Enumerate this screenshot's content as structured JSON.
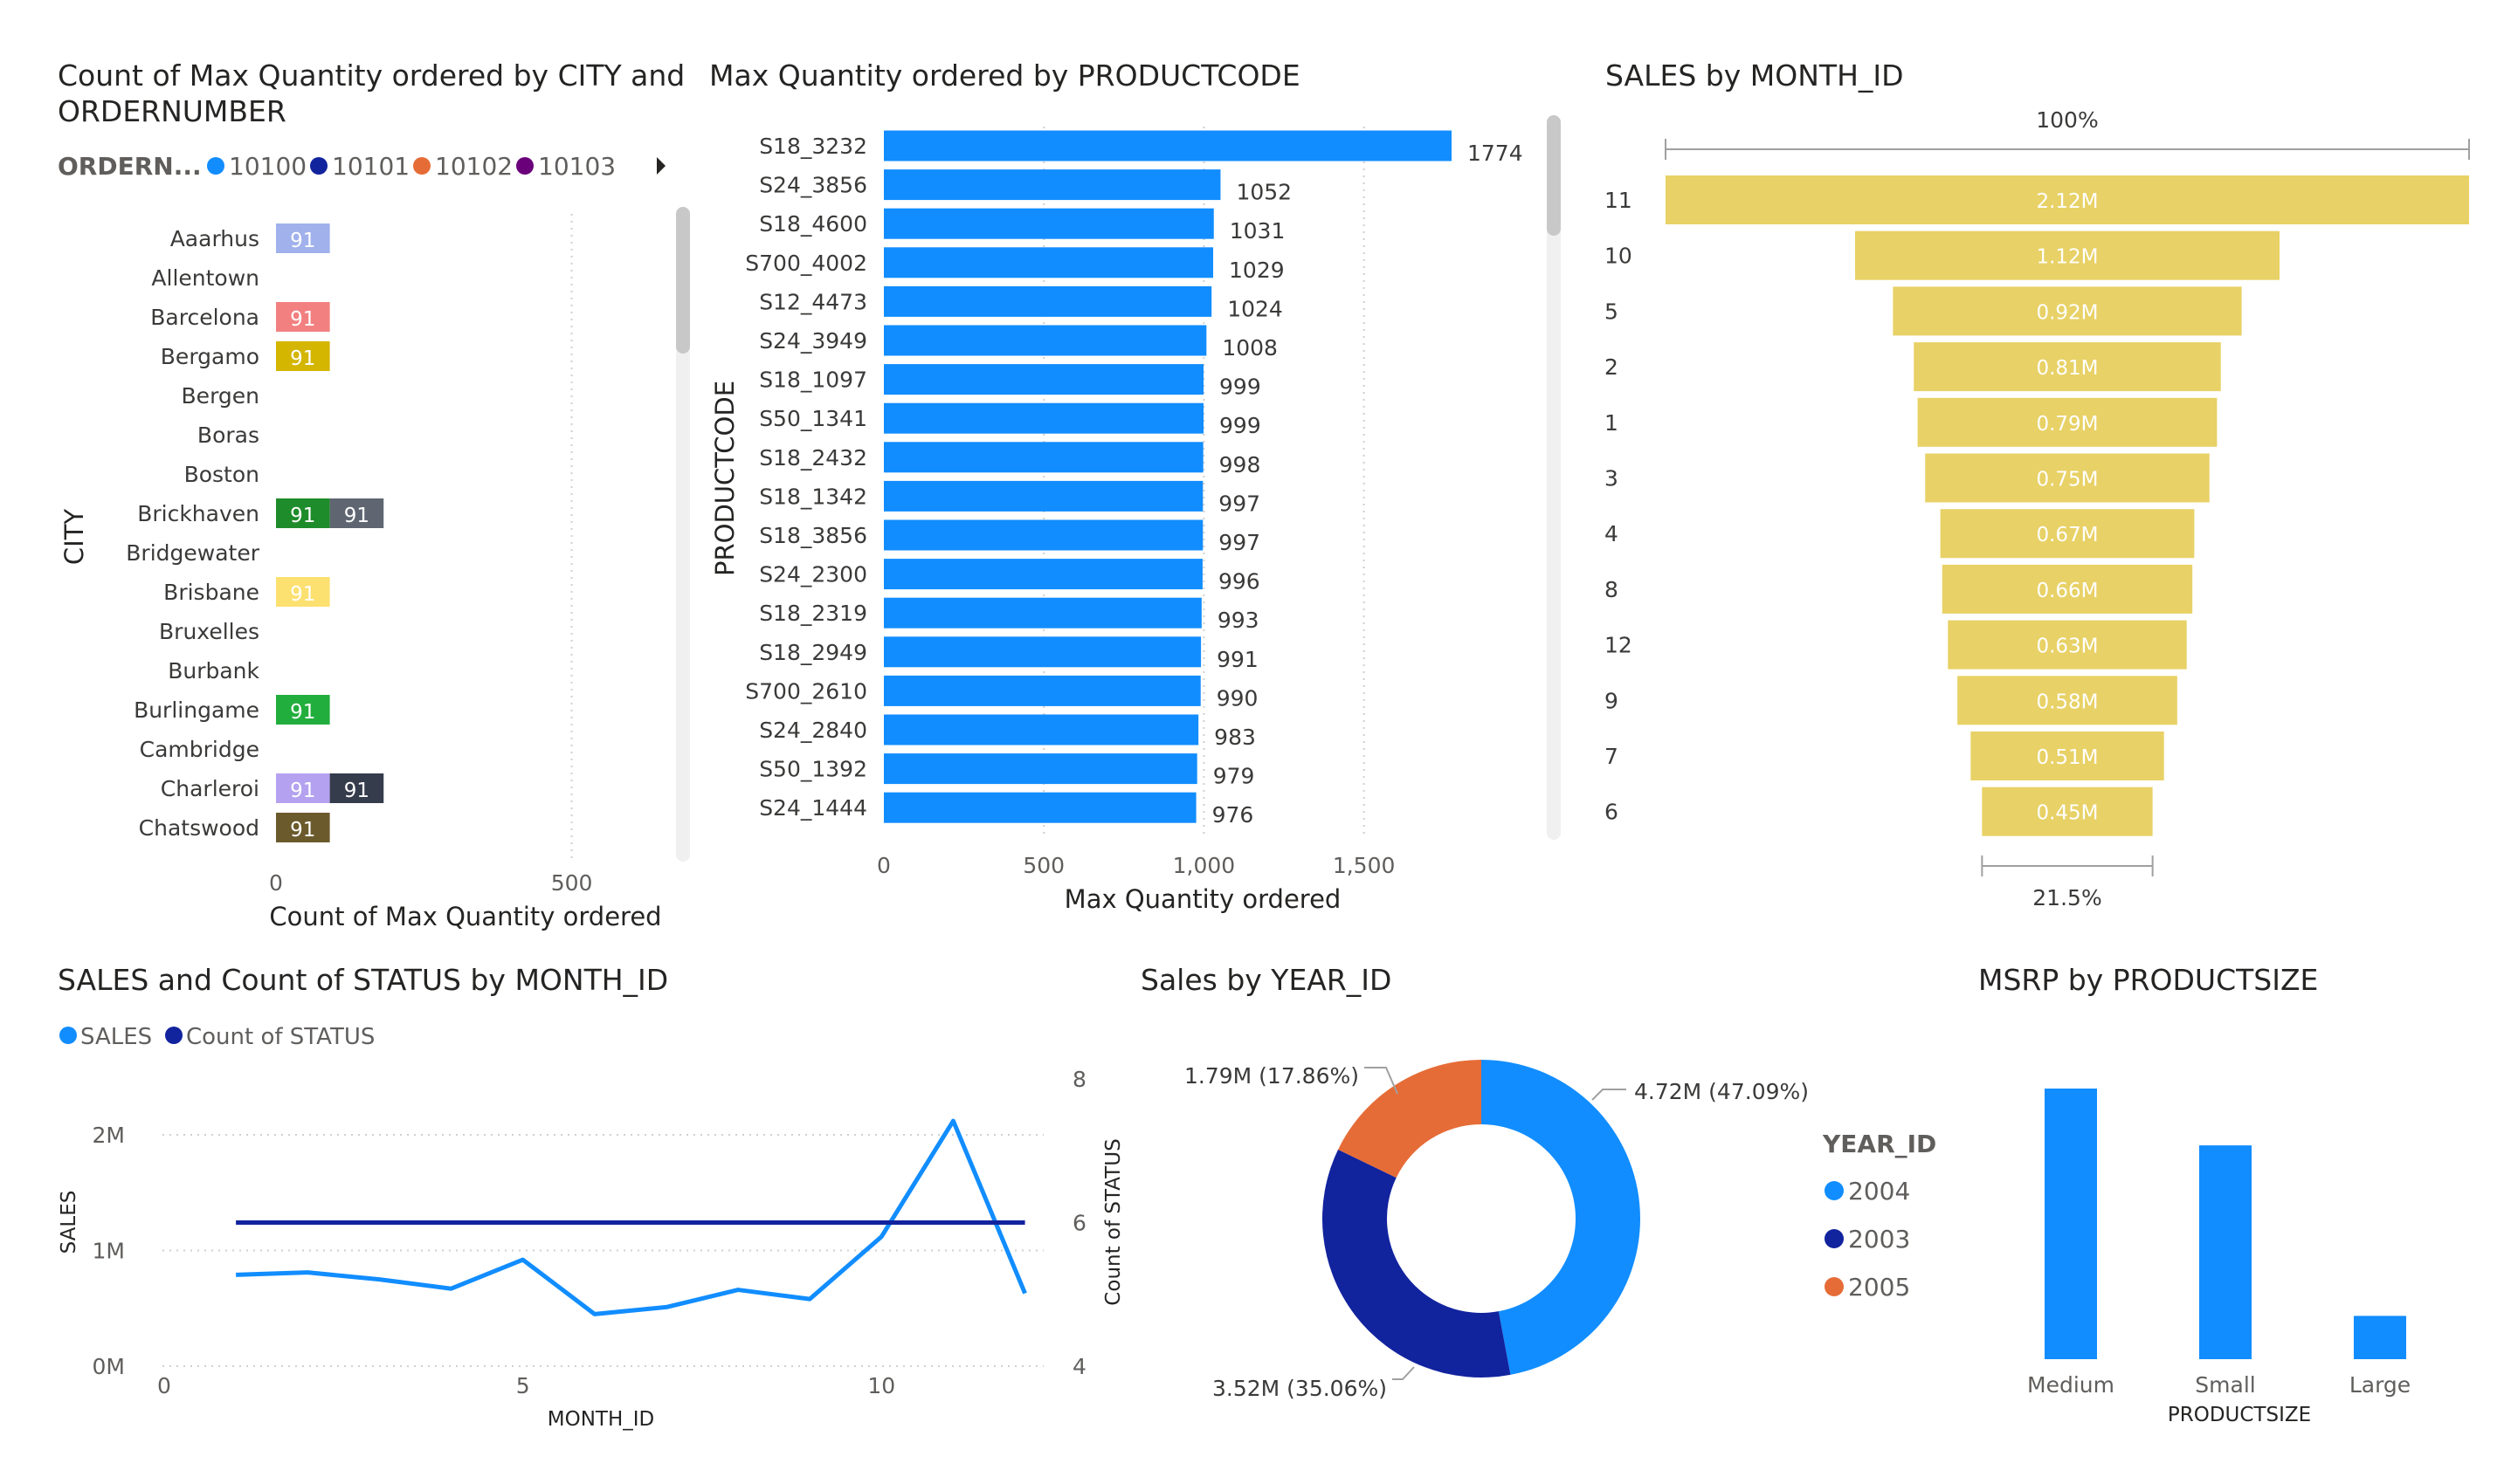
{
  "colors": {
    "blue": "#118DFF",
    "dark_blue": "#12239E",
    "orange": "#E66C37",
    "purple": "#6B007B",
    "funnel": "#E8D166"
  },
  "chart_data": [
    {
      "id": "city_order",
      "type": "bar",
      "orientation": "horizontal",
      "stacked": true,
      "title": "Count of Max Quantity ordered by CITY and ORDERNUMBER",
      "title_lines": [
        "Count of Max Quantity ordered by CITY and",
        "ORDERNUMBER"
      ],
      "xlabel": "Count of Max Quantity ordered",
      "ylabel": "CITY",
      "xlim": [
        0,
        700
      ],
      "x_ticks": [
        0,
        500
      ],
      "legend_title": "ORDERN...",
      "legend": [
        "10100",
        "10101",
        "10102",
        "10103"
      ],
      "legend_colors": [
        "#118DFF",
        "#12239E",
        "#E66C37",
        "#6B007B"
      ],
      "legend_position": "top",
      "categories": [
        "Aaarhus",
        "Allentown",
        "Barcelona",
        "Bergamo",
        "Bergen",
        "Boras",
        "Boston",
        "Brickhaven",
        "Bridgewater",
        "Brisbane",
        "Bruxelles",
        "Burbank",
        "Burlingame",
        "Cambridge",
        "Charleroi",
        "Chatswood"
      ],
      "segments": [
        [
          {
            "value": 91,
            "color": "#A0B1EC",
            "label": "91"
          }
        ],
        [],
        [
          {
            "value": 91,
            "color": "#F28080",
            "label": "91"
          }
        ],
        [
          {
            "value": 91,
            "color": "#D4B500",
            "label": "91"
          }
        ],
        [],
        [],
        [],
        [
          {
            "value": 91,
            "color": "#1E8C2A",
            "label": "91"
          },
          {
            "value": 91,
            "color": "#5F6672",
            "label": "91"
          }
        ],
        [],
        [
          {
            "value": 91,
            "color": "#FCE070",
            "label": "91"
          }
        ],
        [],
        [],
        [
          {
            "value": 91,
            "color": "#22AE3D",
            "label": "91"
          }
        ],
        [],
        [
          {
            "value": 91,
            "color": "#B4A2F0",
            "label": "91"
          },
          {
            "value": 91,
            "color": "#353C4C",
            "label": "91"
          }
        ],
        [
          {
            "value": 91,
            "color": "#6B5A2C",
            "label": "91"
          }
        ]
      ]
    },
    {
      "id": "productcode",
      "type": "bar",
      "orientation": "horizontal",
      "title": "Max Quantity ordered by PRODUCTCODE",
      "xlabel": "Max Quantity ordered",
      "ylabel": "PRODUCTCODE",
      "xlim": [
        0,
        1774
      ],
      "x_ticks": [
        0,
        500,
        1000,
        1500
      ],
      "x_tick_labels": [
        "0",
        "500",
        "1,000",
        "1,500"
      ],
      "categories": [
        "S18_3232",
        "S24_3856",
        "S18_4600",
        "S700_4002",
        "S12_4473",
        "S24_3949",
        "S18_1097",
        "S50_1341",
        "S18_2432",
        "S18_1342",
        "S18_3856",
        "S24_2300",
        "S18_2319",
        "S18_2949",
        "S700_2610",
        "S24_2840",
        "S50_1392",
        "S24_1444"
      ],
      "values": [
        1774,
        1052,
        1031,
        1029,
        1024,
        1008,
        999,
        999,
        998,
        997,
        997,
        996,
        993,
        991,
        990,
        983,
        979,
        976
      ]
    },
    {
      "id": "funnel",
      "type": "funnel",
      "title": "SALES by MONTH_ID",
      "categories": [
        "11",
        "10",
        "5",
        "2",
        "1",
        "3",
        "4",
        "8",
        "12",
        "9",
        "7",
        "6"
      ],
      "values": [
        2.12,
        1.12,
        0.92,
        0.81,
        0.79,
        0.75,
        0.67,
        0.66,
        0.63,
        0.58,
        0.51,
        0.45
      ],
      "value_labels": [
        "2.12M",
        "1.12M",
        "0.92M",
        "0.81M",
        "0.79M",
        "0.75M",
        "0.67M",
        "0.66M",
        "0.63M",
        "0.58M",
        "0.51M",
        "0.45M"
      ],
      "top_percent": "100%",
      "bottom_percent": "21.5%"
    },
    {
      "id": "combo",
      "type": "line",
      "title": "SALES and Count of STATUS by MONTH_ID",
      "xlabel": "MONTH_ID",
      "ylabel": "SALES",
      "y2label": "Count of STATUS",
      "x": [
        1,
        2,
        3,
        4,
        5,
        6,
        7,
        8,
        9,
        10,
        11,
        12
      ],
      "xlim": [
        0,
        12.2
      ],
      "x_ticks": [
        0,
        5,
        10
      ],
      "ylim": [
        0,
        2.0
      ],
      "y_ticks": [
        0,
        1,
        2
      ],
      "y_tick_labels": [
        "0M",
        "1M",
        "2M"
      ],
      "y2lim": [
        4,
        8
      ],
      "y2_ticks": [
        4,
        6,
        8
      ],
      "legend_position": "top-left",
      "series": [
        {
          "name": "SALES",
          "axis": "left",
          "color": "#118DFF",
          "values": [
            0.79,
            0.81,
            0.75,
            0.67,
            0.92,
            0.45,
            0.51,
            0.66,
            0.58,
            1.12,
            2.12,
            0.63
          ]
        },
        {
          "name": "Count of STATUS",
          "axis": "right",
          "color": "#12239E",
          "values": [
            6,
            6,
            6,
            6,
            6,
            6,
            6,
            6,
            6,
            6,
            6,
            6
          ]
        }
      ]
    },
    {
      "id": "donut",
      "type": "pie",
      "donut": true,
      "title": "Sales by YEAR_ID",
      "slices": [
        {
          "name": "2004",
          "value": 4.72,
          "percent": 47.09,
          "label": "4.72M (47.09%)",
          "color": "#118DFF"
        },
        {
          "name": "2003",
          "value": 3.52,
          "percent": 35.06,
          "label": "3.52M (35.06%)",
          "color": "#12239E"
        },
        {
          "name": "2005",
          "value": 1.79,
          "percent": 17.86,
          "label": "1.79M (17.86%)",
          "color": "#E66C37"
        }
      ],
      "legend_title": "YEAR_ID",
      "legend": [
        "2004",
        "2003",
        "2005"
      ],
      "legend_colors": [
        "#118DFF",
        "#12239E",
        "#E66C37"
      ],
      "legend_position": "left"
    },
    {
      "id": "msrp",
      "type": "bar",
      "title": "MSRP by PRODUCTSIZE",
      "xlabel": "PRODUCTSIZE",
      "categories": [
        "Medium",
        "Small",
        "Large"
      ],
      "values": [
        100,
        79,
        16
      ],
      "ylim": [
        0,
        100
      ]
    }
  ]
}
